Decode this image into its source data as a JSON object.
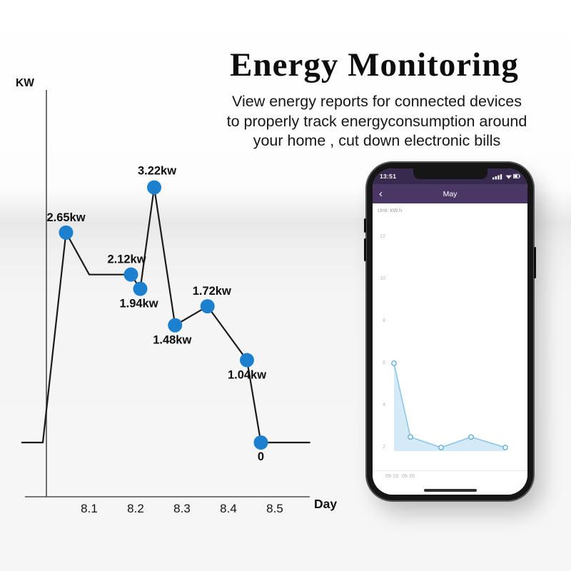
{
  "title": "Energy Monitoring",
  "subtitle_lines": [
    "View energy reports for connected devices",
    "to properly track energyconsumption around",
    "your home , cut down electronic bills"
  ],
  "chart_data": [
    {
      "type": "line",
      "title": "Daily energy consumption",
      "ylabel": "KW",
      "xlabel": "Day",
      "x_ticks": [
        "8.1",
        "8.2",
        "8.3",
        "8.4",
        "8.5"
      ],
      "ylim": [
        0,
        3.5
      ],
      "line_color": "#1b1b1b",
      "marker_color": "#1d80cf",
      "vertices": [
        {
          "day": 7.955,
          "kw": 0
        },
        {
          "day": 8.0,
          "kw": 0
        },
        {
          "day": 8.05,
          "kw": 2.65,
          "label": "2.65kw"
        },
        {
          "day": 8.1,
          "kw": 2.12
        },
        {
          "day": 8.19,
          "kw": 2.12,
          "label": "2.12kw"
        },
        {
          "day": 8.21,
          "kw": 1.94,
          "label": "1.94kw"
        },
        {
          "day": 8.24,
          "kw": 3.22,
          "label": "3.22kw"
        },
        {
          "day": 8.285,
          "kw": 1.48,
          "label": "1.48kw"
        },
        {
          "day": 8.355,
          "kw": 1.72,
          "label": "1.72kw"
        },
        {
          "day": 8.44,
          "kw": 1.04,
          "label": "1.04kw"
        },
        {
          "day": 8.47,
          "kw": 0,
          "label": "0"
        },
        {
          "day": 8.575,
          "kw": 0
        }
      ]
    },
    {
      "type": "area",
      "title": "May energy report",
      "y_ticks": [
        12,
        10,
        8,
        6,
        4,
        2
      ],
      "x_labels": [
        "05-19",
        "05-20"
      ],
      "values": [
        6,
        2.5,
        2,
        2.5,
        2
      ],
      "ylim": [
        2,
        12
      ],
      "line_color": "#85c6e8",
      "fill_color": "#d4eaf7",
      "marker_stroke": "#5fb0dc"
    }
  ],
  "phone": {
    "status_time": "13:51",
    "header_title": "May",
    "back_glyph": "‹",
    "unit_label": "Unit: kW.h",
    "colors": {
      "status_bar": "#38294f",
      "header": "#4a3766"
    }
  }
}
